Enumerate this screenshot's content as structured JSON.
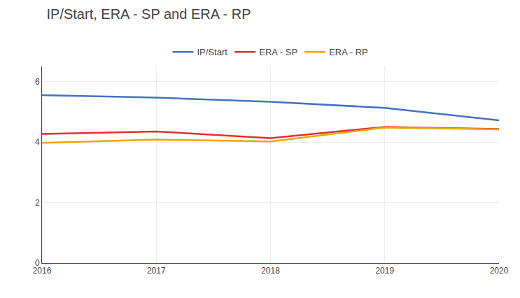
{
  "chart_data": {
    "type": "line",
    "title": "IP/Start, ERA - SP and ERA - RP",
    "x": [
      2016,
      2017,
      2018,
      2019,
      2020
    ],
    "series": [
      {
        "name": "IP/Start",
        "color": "#4472C4",
        "values": [
          5.55,
          5.47,
          5.33,
          5.13,
          4.72
        ]
      },
      {
        "name": "ERA - SP",
        "color": "#E03030",
        "values": [
          4.27,
          4.35,
          4.13,
          4.5,
          4.43
        ]
      },
      {
        "name": "ERA - RP",
        "color": "#E8A800",
        "values": [
          3.97,
          4.08,
          4.02,
          4.48,
          4.42
        ]
      }
    ],
    "xlim": [
      2016,
      2020
    ],
    "xticks": [
      2016,
      2017,
      2018,
      2019,
      2020
    ],
    "ylim": [
      0,
      6.5
    ],
    "yticks": [
      0,
      2,
      4,
      6
    ],
    "grid": true,
    "legend": "top"
  }
}
